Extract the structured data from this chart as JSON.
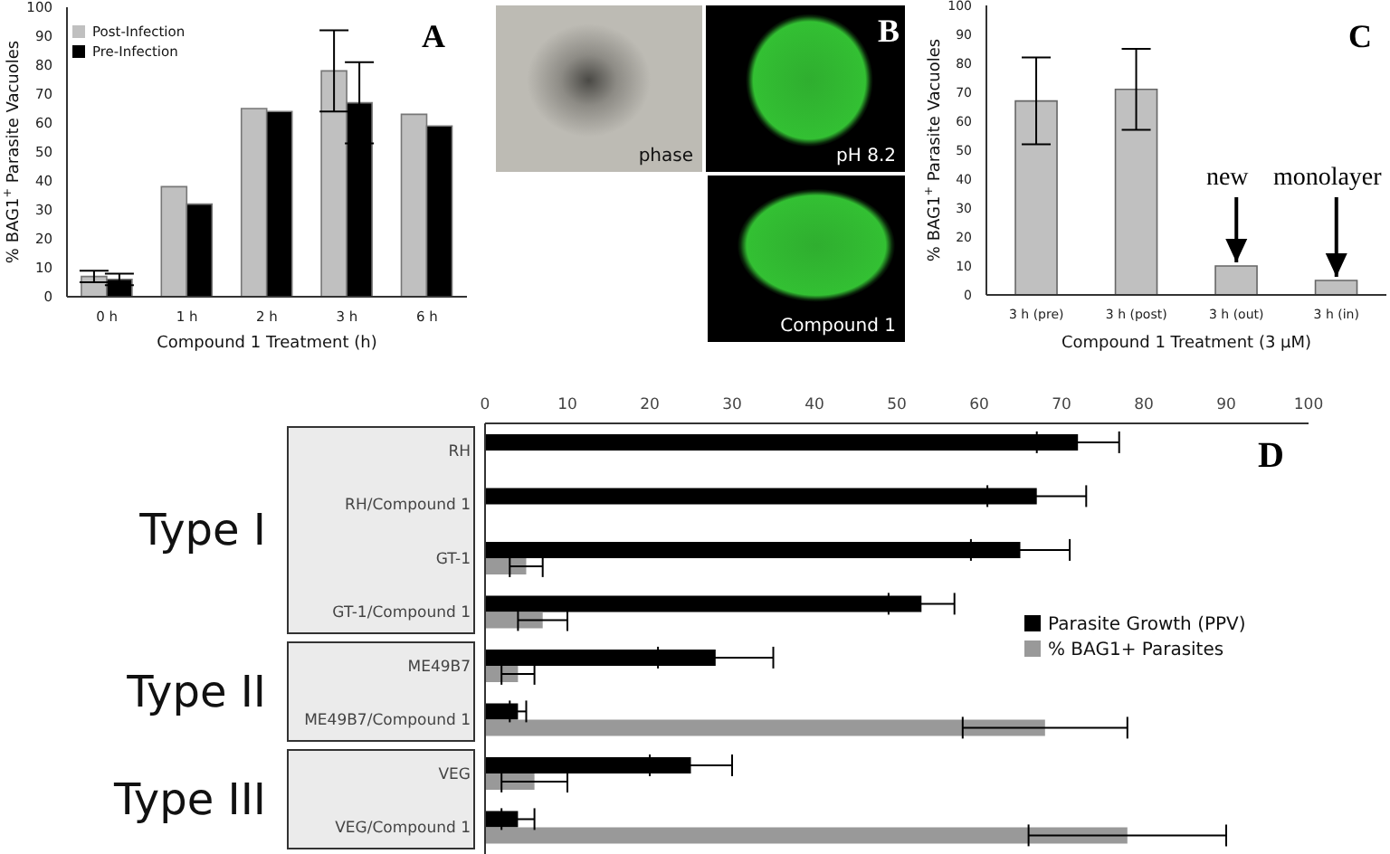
{
  "chart_data": [
    {
      "type": "bar",
      "title": "A",
      "xlabel": "Compound 1 Treatment (h)",
      "ylabel": "% BAG1$^{+}$ Parasite Vacuoles",
      "categories": [
        "0 h",
        "1 h",
        "2 h",
        "3 h",
        "6 h"
      ],
      "series": [
        {
          "name": "Post-Infection",
          "color": "#c0c0c0",
          "values": [
            7,
            38,
            65,
            78,
            63
          ],
          "errors": [
            2,
            null,
            null,
            14,
            null
          ]
        },
        {
          "name": "Pre-Infection",
          "color": "#000000",
          "values": [
            6,
            32,
            64,
            67,
            59
          ],
          "errors": [
            2,
            null,
            null,
            14,
            null
          ]
        }
      ],
      "ylim": [
        0,
        100
      ],
      "yticks": [
        0,
        10,
        20,
        30,
        40,
        50,
        60,
        70,
        80,
        90,
        100
      ],
      "legend": "top left"
    },
    {
      "type": "other",
      "title": "B",
      "annotations": [
        "phase",
        "pH 8.2",
        "Compound 1"
      ]
    },
    {
      "type": "bar",
      "title": "C",
      "xlabel": "Compound 1 Treatment (3 μM)",
      "ylabel": "% BAG1$^{+}$ Parasite Vacuoles",
      "categories": [
        "3 h (pre)",
        "3 h (post)",
        "3 h (out)",
        "3 h (in)"
      ],
      "values": [
        67,
        71,
        10,
        5
      ],
      "errors": [
        15,
        14,
        null,
        null
      ],
      "color": "#c0c0c0",
      "ylim": [
        0,
        100
      ],
      "yticks": [
        0,
        10,
        20,
        30,
        40,
        50,
        60,
        70,
        80,
        90,
        100
      ],
      "annotations": [
        {
          "text": "new",
          "x": "3 h (out)",
          "y": 10
        },
        {
          "text": "monolayer",
          "x": "3 h (in)",
          "y": 5
        }
      ]
    },
    {
      "type": "bar",
      "title": "D",
      "orientation": "horizontal",
      "categories": [
        "RH",
        "RH/Compound 1",
        "GT-1",
        "GT-1/Compound 1",
        "ME49B7",
        "ME49B7/Compound 1",
        "VEG",
        "VEG/Compound 1"
      ],
      "series": [
        {
          "name": "Parasite Growth (PPV)",
          "color": "#000000",
          "values": [
            72,
            67,
            65,
            53,
            28,
            4,
            25,
            4
          ],
          "errors": [
            5,
            6,
            6,
            4,
            7,
            1,
            5,
            2
          ]
        },
        {
          "name": "% BAG1+ Parasites",
          "color": "#999999",
          "values": [
            null,
            null,
            5,
            7,
            4,
            68,
            6,
            78
          ],
          "errors": [
            null,
            null,
            2,
            3,
            2,
            10,
            4,
            12
          ]
        }
      ],
      "xlim": [
        0,
        100
      ],
      "xticks": [
        0,
        10,
        20,
        30,
        40,
        50,
        60,
        70,
        80,
        90,
        100
      ],
      "legend": "right",
      "annotations": [
        "Type I",
        "Type II",
        "Type III"
      ]
    }
  ]
}
